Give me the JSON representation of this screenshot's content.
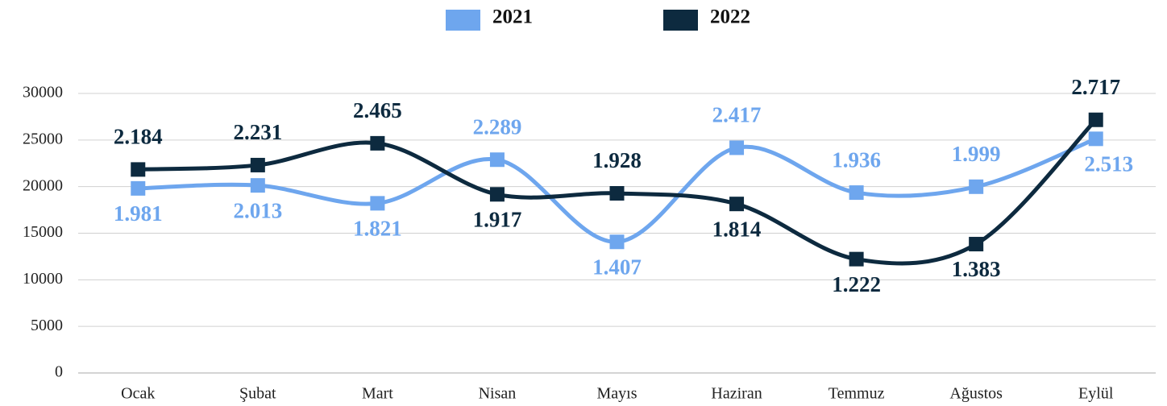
{
  "chart_data": {
    "type": "line",
    "categories": [
      "Ocak",
      "Şubat",
      "Mart",
      "Nisan",
      "Mayıs",
      "Haziran",
      "Temmuz",
      "Ağustos",
      "Eylül"
    ],
    "series": [
      {
        "name": "2021",
        "color": "#6ea6ee",
        "values": [
          19810,
          20130,
          18210,
          22890,
          14070,
          24170,
          19360,
          19990,
          25130
        ],
        "value_labels": [
          "1.981",
          "2.013",
          "1.821",
          "2.289",
          "1.407",
          "2.417",
          "1.936",
          "1.999",
          "2.513"
        ]
      },
      {
        "name": "2022",
        "color": "#0d2a3f",
        "values": [
          21840,
          22310,
          24650,
          19170,
          19280,
          18140,
          12220,
          13830,
          27170
        ],
        "value_labels": [
          "2.184",
          "2.231",
          "2.465",
          "1.917",
          "1.928",
          "1.814",
          "1.222",
          "1.383",
          "2.717"
        ]
      }
    ],
    "ylim": [
      0,
      30000
    ],
    "yticks": [
      0,
      5000,
      10000,
      15000,
      20000,
      25000,
      30000
    ],
    "grid": true,
    "legend": "top"
  }
}
